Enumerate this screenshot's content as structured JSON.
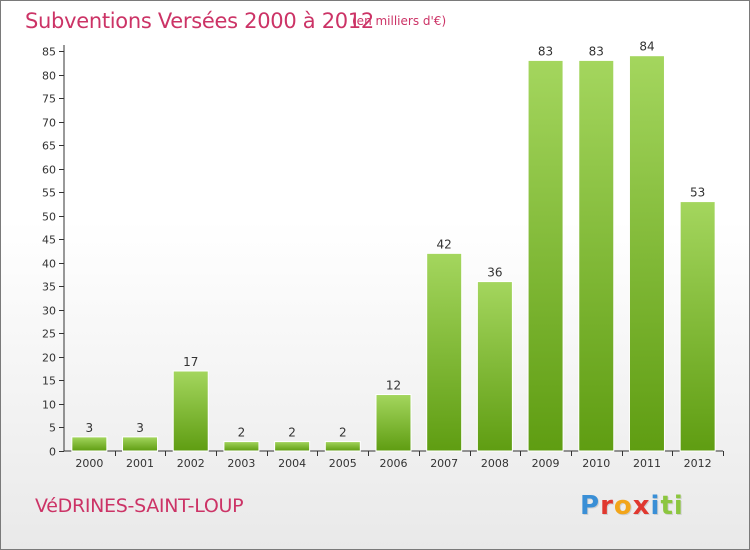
{
  "title": "Subventions Versées 2000 à 2012",
  "unit_note": "(en milliers d'€)",
  "commune": "VéDRINES-SAINT-LOUP",
  "logo": {
    "text": "Proxiti",
    "letter_colors": [
      "#3a8fd6",
      "#e0382f",
      "#f2a51a",
      "#e0382f",
      "#3a8fd6",
      "#8cc63f",
      "#8cc63f"
    ]
  },
  "colors": {
    "bar_light": "#a4d65e",
    "bar_dark": "#5f9d12",
    "title": "#cc3366",
    "axis": "#333333"
  },
  "chart_data": {
    "type": "bar",
    "categories": [
      "2000",
      "2001",
      "2002",
      "2003",
      "2004",
      "2005",
      "2006",
      "2007",
      "2008",
      "2009",
      "2010",
      "2011",
      "2012"
    ],
    "values": [
      3,
      3,
      17,
      2,
      2,
      2,
      12,
      42,
      36,
      83,
      83,
      84,
      53
    ],
    "yticks": [
      0,
      5,
      10,
      15,
      20,
      25,
      30,
      35,
      40,
      45,
      50,
      55,
      60,
      65,
      70,
      75,
      80,
      85
    ],
    "ylim": [
      0,
      85
    ],
    "grid": false,
    "show_value_labels": true
  }
}
